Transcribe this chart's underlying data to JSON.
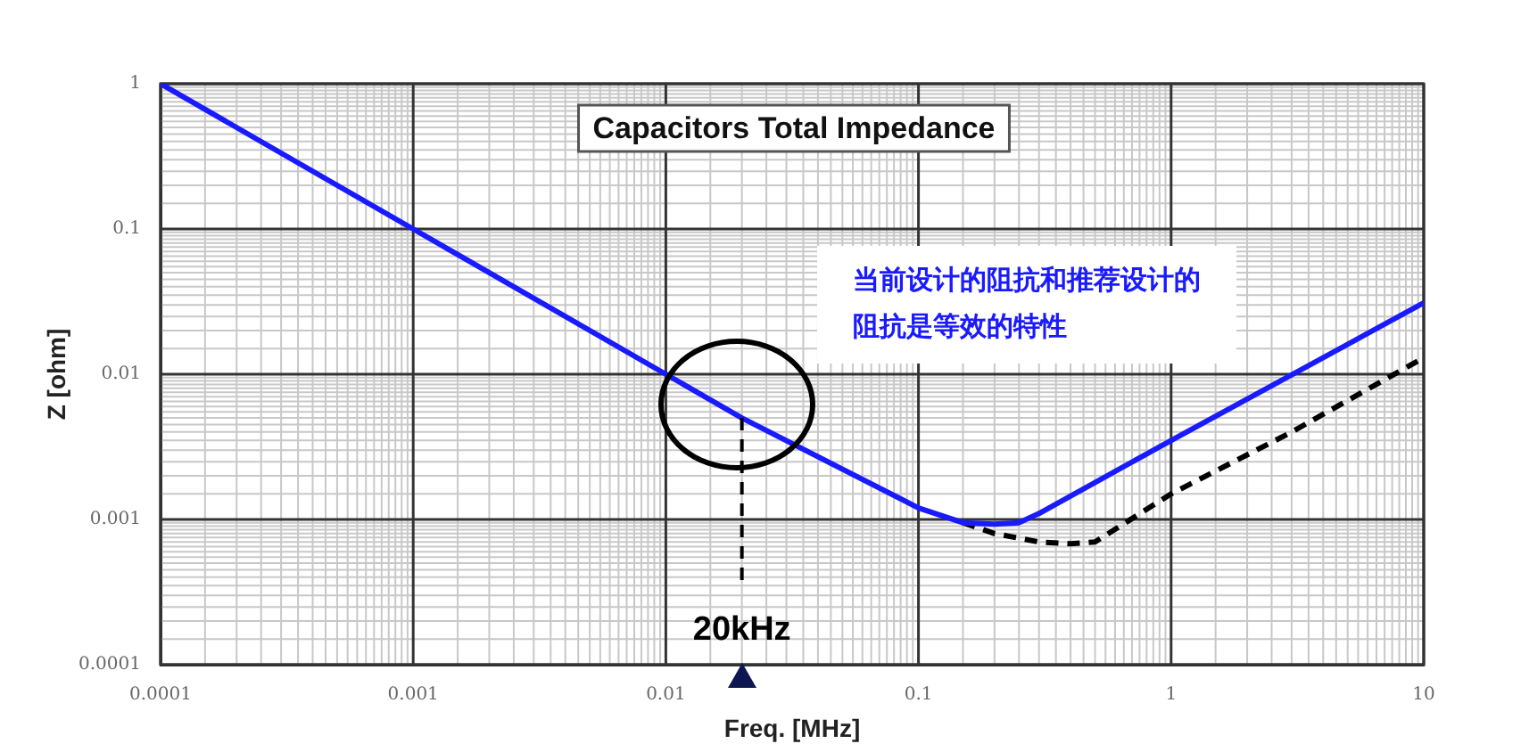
{
  "chart_data": {
    "type": "line",
    "title": "Capacitors Total Impedance",
    "xlabel": "Freq. [MHz]",
    "ylabel": "Z [ohm]",
    "annotations": [
      "当前设计的阻抗和推荐设计的阻抗是等效的特性"
    ],
    "log": "xy",
    "grid": true,
    "legend": false,
    "marker": "none",
    "xlim": [
      0.0001,
      10
    ],
    "xticks": [
      0.0001,
      0.001,
      0.01,
      0.1,
      1,
      10
    ],
    "ylim": [
      0.0001,
      1
    ],
    "yticks": [
      0.0001,
      0.001,
      0.01,
      0.1,
      1
    ],
    "ref_lines": [
      {
        "axis": "x",
        "value": 0.02,
        "label": "20kHz",
        "line_style": "dashed",
        "color": "#000000"
      }
    ],
    "series": [
      {
        "color": "#1a1aff",
        "line_style": "solid",
        "x": [
          0.0001,
          0.001,
          0.01,
          0.02,
          0.1,
          0.15,
          0.2,
          0.25,
          0.3,
          1,
          10
        ],
        "values": [
          1,
          0.1,
          0.01,
          0.005,
          0.0012,
          0.00095,
          0.00093,
          0.00095,
          0.0011,
          0.0035,
          0.031
        ]
      },
      {
        "color": "#000000",
        "line_style": "dashed",
        "x": [
          0.15,
          0.2,
          0.3,
          0.4,
          0.5,
          1,
          3,
          10
        ],
        "values": [
          0.00095,
          0.0008,
          0.0007,
          0.00068,
          0.0007,
          0.0015,
          0.004,
          0.013
        ]
      }
    ]
  }
}
